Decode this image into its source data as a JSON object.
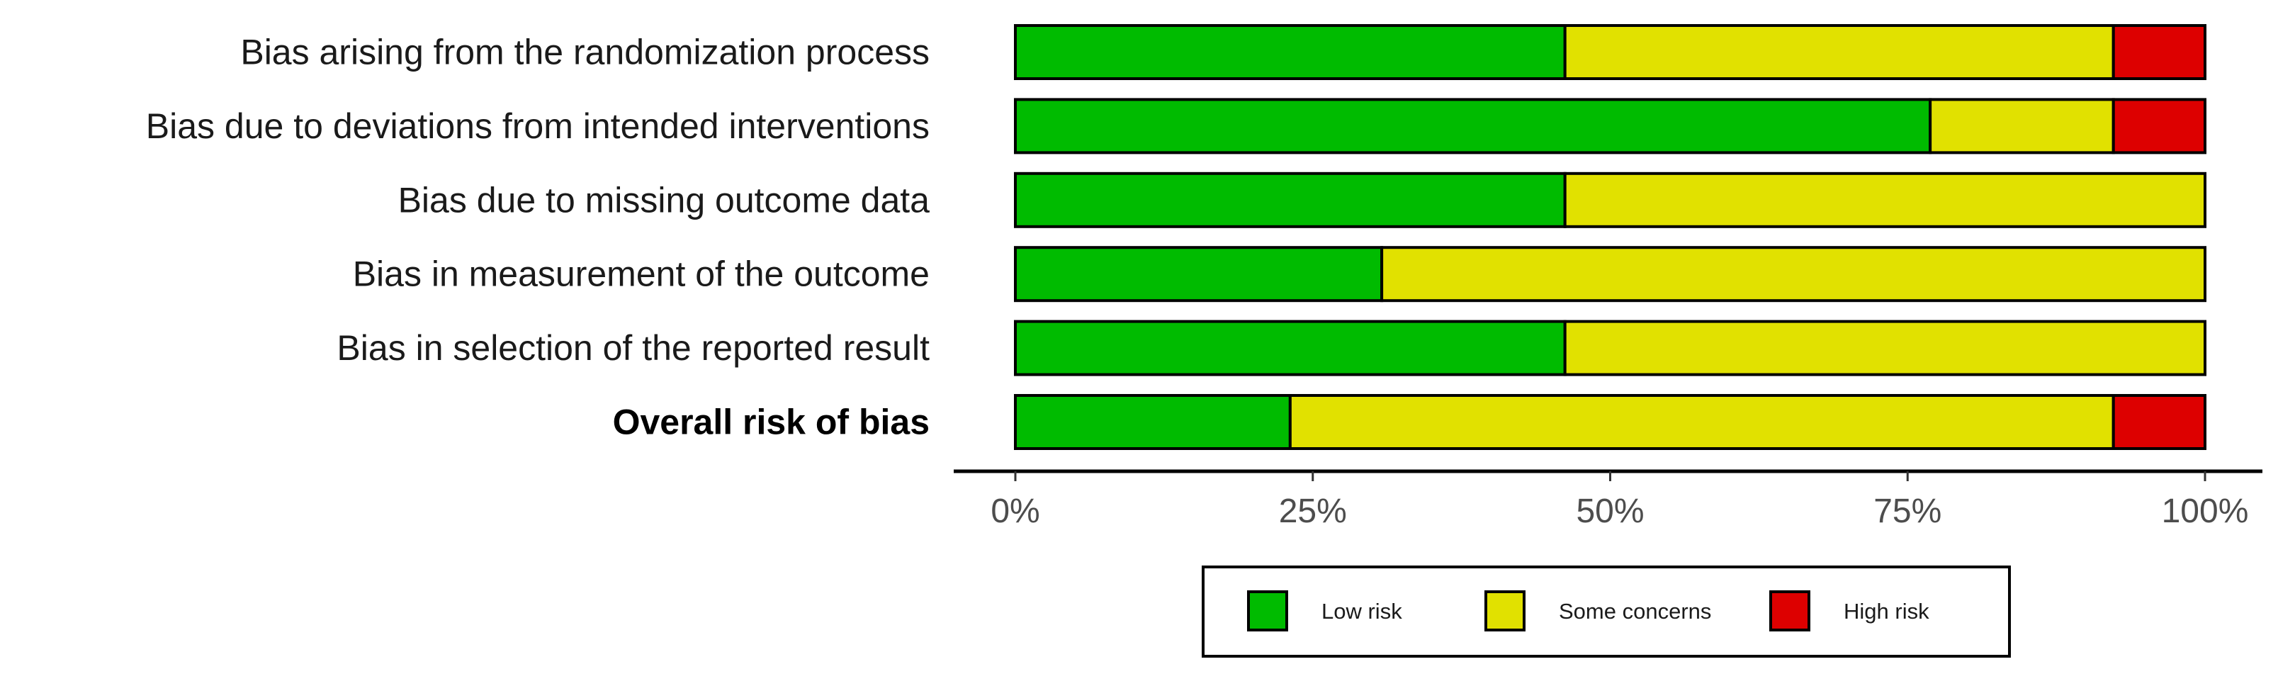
{
  "chart_data": {
    "type": "bar",
    "orientation": "horizontal",
    "stacked": true,
    "title": "",
    "xlabel": "",
    "ylabel": "",
    "xlim": [
      0,
      100
    ],
    "x_tick_labels": [
      "0%",
      "25%",
      "50%",
      "75%",
      "100%"
    ],
    "x_tick_values": [
      0,
      25,
      50,
      75,
      100
    ],
    "categories": [
      "Bias arising from the randomization process",
      "Bias due to deviations from intended  interventions",
      "Bias due to missing outcome data",
      "Bias in measurement of the outcome",
      "Bias in selection of the reported  result",
      "Overall risk of bias"
    ],
    "bold_category": "Overall risk of bias",
    "series": [
      {
        "name": "Low risk",
        "color": "#00bb00",
        "values": [
          46.2,
          76.9,
          46.2,
          30.8,
          46.2,
          23.1
        ]
      },
      {
        "name": "Some concerns",
        "color": "#e1e100",
        "values": [
          46.1,
          15.4,
          53.8,
          69.2,
          53.8,
          69.2
        ]
      },
      {
        "name": "High risk",
        "color": "#dd0000",
        "values": [
          7.7,
          7.7,
          0,
          0,
          0,
          7.7
        ]
      }
    ],
    "legend_position": "bottom",
    "grid": false
  }
}
